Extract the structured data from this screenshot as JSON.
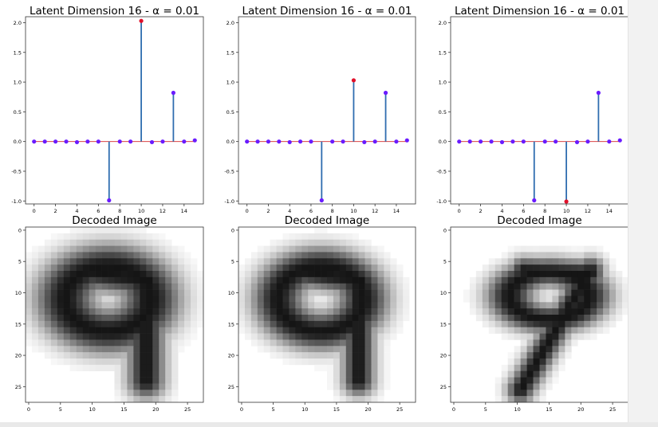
{
  "chart_data": [
    {
      "type": "stem",
      "title": "Latent Dimension 16 - α = 0.01",
      "x": [
        0,
        1,
        2,
        3,
        4,
        5,
        6,
        7,
        8,
        9,
        10,
        11,
        12,
        13,
        14,
        15
      ],
      "values": [
        0.0,
        0.0,
        0.0,
        0.0,
        -0.01,
        0.0,
        0.0,
        -0.99,
        0.0,
        0.0,
        2.03,
        -0.01,
        0.0,
        0.82,
        0.0,
        0.02
      ],
      "highlight_index": 10,
      "xticks": [
        0,
        2,
        4,
        6,
        8,
        10,
        12,
        14
      ],
      "yticks": [
        -1.0,
        -0.5,
        0.0,
        0.5,
        1.0,
        1.5,
        2.0
      ],
      "ytick_labels": [
        "-1.0",
        "-0.5",
        "0.0",
        "0.5",
        "1.0",
        "1.5",
        "2.0"
      ],
      "ylim": [
        -1.05,
        2.1
      ],
      "xlim": [
        -0.8,
        15.8
      ],
      "stem_color": "#2f6db0",
      "marker_color": "#6a1bff",
      "highlight_color": "#e0102a"
    },
    {
      "type": "stem",
      "title": "Latent Dimension 16 - α = 0.01",
      "x": [
        0,
        1,
        2,
        3,
        4,
        5,
        6,
        7,
        8,
        9,
        10,
        11,
        12,
        13,
        14,
        15
      ],
      "values": [
        0.0,
        0.0,
        0.0,
        0.0,
        -0.01,
        0.0,
        0.0,
        -0.99,
        0.0,
        0.0,
        1.03,
        -0.01,
        0.0,
        0.82,
        0.0,
        0.02
      ],
      "highlight_index": 10,
      "xticks": [
        0,
        2,
        4,
        6,
        8,
        10,
        12,
        14
      ],
      "yticks": [
        -1.0,
        -0.5,
        0.0,
        0.5,
        1.0,
        1.5,
        2.0
      ],
      "ytick_labels": [
        "-1.0",
        "-0.5",
        "0.0",
        "0.5",
        "1.0",
        "1.5",
        "2.0"
      ],
      "ylim": [
        -1.05,
        2.1
      ],
      "xlim": [
        -0.8,
        15.8
      ],
      "stem_color": "#2f6db0",
      "marker_color": "#6a1bff",
      "highlight_color": "#e0102a"
    },
    {
      "type": "stem",
      "title": "Latent Dimension 16 - α = 0.01",
      "x": [
        0,
        1,
        2,
        3,
        4,
        5,
        6,
        7,
        8,
        9,
        10,
        11,
        12,
        13,
        14,
        15
      ],
      "values": [
        0.0,
        0.0,
        0.0,
        0.0,
        -0.01,
        0.0,
        0.0,
        -0.99,
        0.0,
        0.0,
        -1.01,
        -0.01,
        0.0,
        0.82,
        0.0,
        0.02
      ],
      "highlight_index": 10,
      "xticks": [
        0,
        2,
        4,
        6,
        8,
        10,
        12,
        14
      ],
      "yticks": [
        -1.0,
        -0.5,
        0.0,
        0.5,
        1.0,
        1.5,
        2.0
      ],
      "ytick_labels": [
        "-1.0",
        "-0.5",
        "0.0",
        "0.5",
        "1.0",
        "1.5",
        "2.0"
      ],
      "ylim": [
        -1.05,
        2.1
      ],
      "xlim": [
        -0.8,
        15.8
      ],
      "stem_color": "#2f6db0",
      "marker_color": "#6a1bff",
      "highlight_color": "#e0102a"
    },
    {
      "type": "heatmap",
      "title": "Decoded Image",
      "digit": "9",
      "variant": "open",
      "xticks": [
        0,
        5,
        10,
        15,
        20,
        25
      ],
      "yticks": [
        0,
        5,
        10,
        15,
        20,
        25
      ],
      "xlim": [
        -0.5,
        27.5
      ],
      "ylim": [
        27.5,
        -0.5
      ],
      "colormap": "gray_r"
    },
    {
      "type": "heatmap",
      "title": "Decoded Image",
      "digit": "9",
      "variant": "open-thin",
      "xticks": [
        0,
        5,
        10,
        15,
        20,
        25
      ],
      "yticks": [
        0,
        5,
        10,
        15,
        20,
        25
      ],
      "xlim": [
        -0.5,
        27.5
      ],
      "ylim": [
        27.5,
        -0.5
      ],
      "colormap": "gray_r"
    },
    {
      "type": "heatmap",
      "title": "Decoded Image",
      "digit": "9",
      "variant": "slanted",
      "xticks": [
        0,
        5,
        10,
        15,
        20,
        25
      ],
      "yticks": [
        0,
        5,
        10,
        15,
        20,
        25
      ],
      "xlim": [
        -0.5,
        27.5
      ],
      "ylim": [
        27.5,
        -0.5
      ],
      "colormap": "gray_r"
    }
  ]
}
